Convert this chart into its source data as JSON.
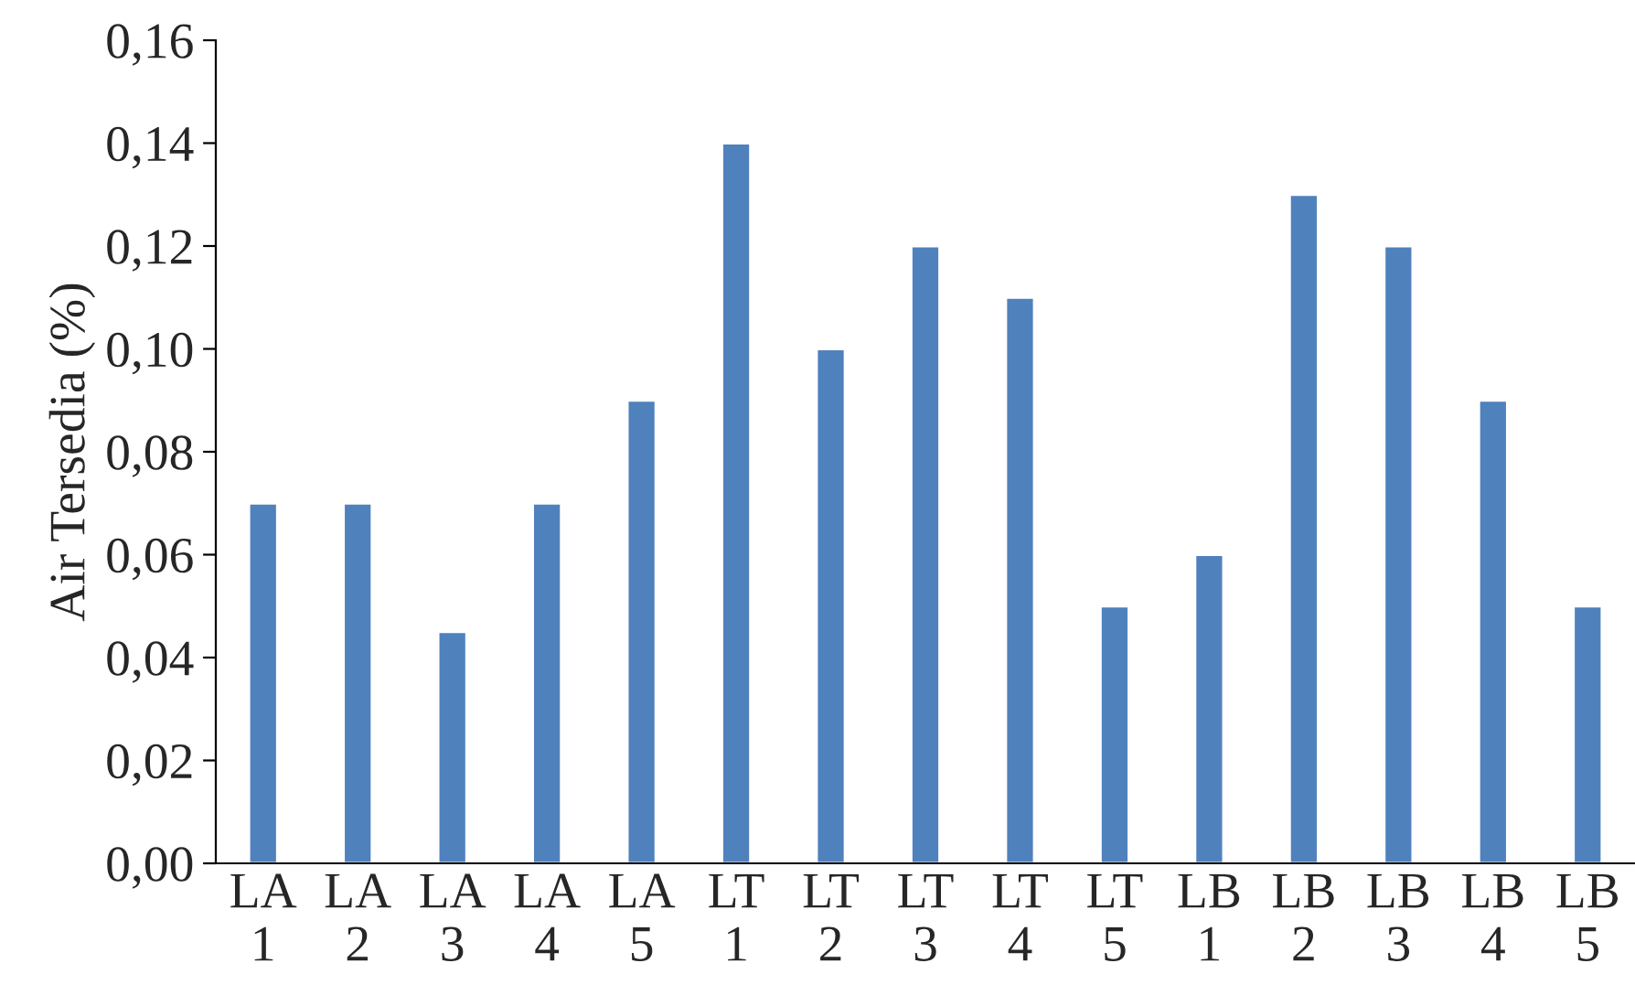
{
  "chart_data": {
    "type": "bar",
    "ylabel": "Air Tersedia (%)",
    "categories": [
      "LA\n1",
      "LA\n2",
      "LA\n3",
      "LA\n4",
      "LA\n5",
      "LT\n1",
      "LT\n2",
      "LT\n3",
      "LT\n4",
      "LT\n5",
      "LB\n1",
      "LB\n2",
      "LB\n3",
      "LB\n4",
      "LB\n5"
    ],
    "values": [
      0.07,
      0.07,
      0.045,
      0.07,
      0.09,
      0.14,
      0.1,
      0.12,
      0.11,
      0.05,
      0.06,
      0.13,
      0.12,
      0.09,
      0.05
    ],
    "color": "#4f81bd",
    "ylim": [
      0,
      0.16
    ],
    "yticks": [
      {
        "value": 0,
        "label": "0,00"
      },
      {
        "value": 0.02,
        "label": "0,02"
      },
      {
        "value": 0.04,
        "label": "0,04"
      },
      {
        "value": 0.06,
        "label": "0,06"
      },
      {
        "value": 0.08,
        "label": "0,08"
      },
      {
        "value": 0.1,
        "label": "0,10"
      },
      {
        "value": 0.12,
        "label": "0,12"
      },
      {
        "value": 0.14,
        "label": "0,14"
      },
      {
        "value": 0.16,
        "label": "0,16"
      }
    ],
    "grid": false,
    "legend": false
  }
}
